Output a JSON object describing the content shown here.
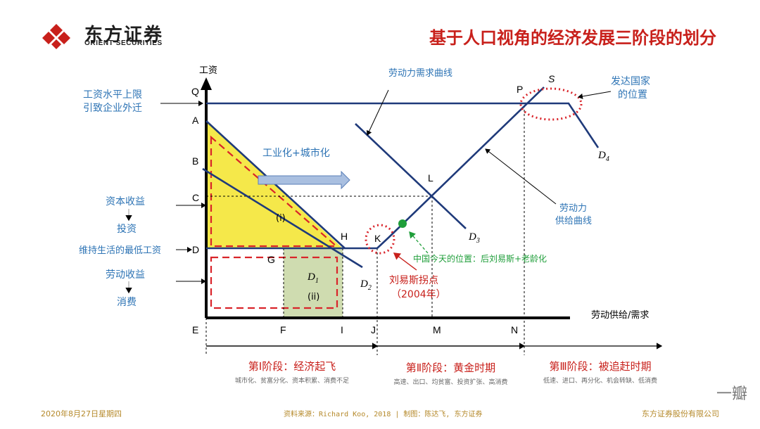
{
  "header": {
    "company_cn": "东方证券",
    "company_en": "ORIENT SECURITIES",
    "title": "基于人口视角的经济发展三阶段的划分"
  },
  "diagram": {
    "axis_y_label": "工资",
    "axis_x_label": "劳动供给/需求",
    "left_labels": {
      "wage_ceiling_line1": "工资水平上限",
      "wage_ceiling_line2": "引致企业外迁",
      "capital_income": "资本收益",
      "investment": "投资",
      "min_wage": "维持生活的最低工资",
      "labor_income": "劳动收益",
      "consumption": "消费"
    },
    "points": {
      "Q": "Q",
      "A": "A",
      "B": "B",
      "C": "C",
      "D": "D",
      "E": "E",
      "G": "G",
      "H": "H",
      "F": "F",
      "I": "I",
      "J": "J",
      "K": "K",
      "L": "L",
      "M": "M",
      "N": "N",
      "P": "P",
      "S": "S"
    },
    "curves": {
      "D1": "D",
      "D1_sub": "1",
      "D2": "D",
      "D2_sub": "2",
      "D3": "D",
      "D3_sub": "3",
      "D4": "D",
      "D4_sub": "4"
    },
    "region_labels": {
      "i": "(i)",
      "ii": "(ii)"
    },
    "annotations": {
      "industrialization": "工业化+城市化",
      "demand_curve": "劳动力需求曲线",
      "supply_curve_line1": "劳动力",
      "supply_curve_line2": "供给曲线",
      "developed_line1": "发达国家",
      "developed_line2": "的位置",
      "china_position": "中国今天的位置：后刘易斯+老龄化",
      "lewis_line1": "刘易斯拐点",
      "lewis_line2": "（2004年）"
    }
  },
  "stages": [
    {
      "title": "第Ⅰ阶段：经济起飞",
      "subtitle": "城市化、贫富分化、资本积累、消费不足"
    },
    {
      "title": "第Ⅱ阶段：黄金时期",
      "subtitle": "高速、出口、均贫富、投资扩张、高消费"
    },
    {
      "title": "第Ⅲ阶段：被追赶时期",
      "subtitle": "低速、进口、再分化、机会转缺、低消费"
    }
  ],
  "footer": {
    "date": "2020年8月27日星期四",
    "source": "资料来源：Richard Koo, 2018 | 制图：陈达飞, 东方证券",
    "company": "东方证券股份有限公司",
    "watermark": "一瓣"
  },
  "colors": {
    "brand_red": "#c8201b",
    "line_navy": "#1f3a7a",
    "label_blue": "#2e74b5",
    "region_yellow": "#f5e84a",
    "region_green": "#cfdcb0",
    "china_green": "#1f9e3a",
    "footer_gold": "#b5892a"
  }
}
